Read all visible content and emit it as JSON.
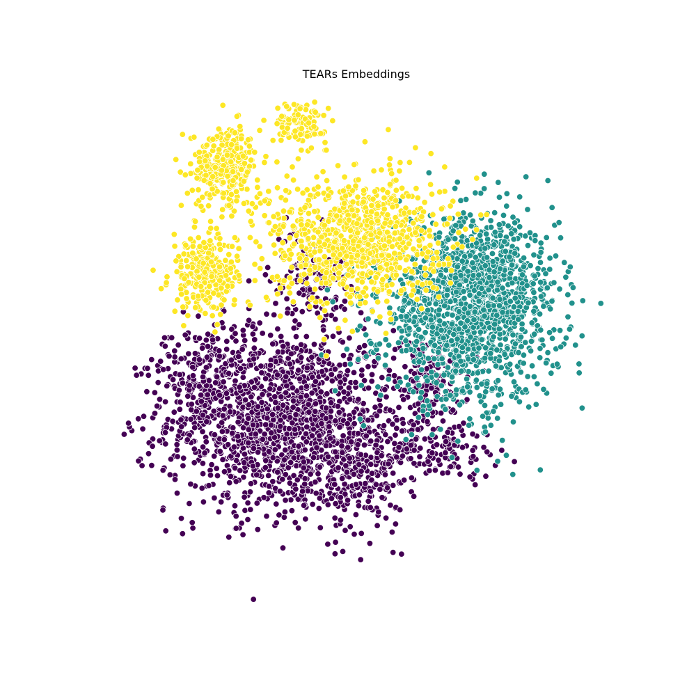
{
  "chart_data": {
    "type": "scatter",
    "title": "TEARs Embeddings",
    "xlabel": "",
    "ylabel": "",
    "axes_visible": false,
    "grid": false,
    "legend": "none",
    "xlim": [
      -80,
      80
    ],
    "ylim": [
      -80,
      80
    ],
    "series": [
      {
        "color": "#440154",
        "clusters": [
          {
            "cx": -22,
            "cy": -22,
            "sx": 17,
            "sy": 14,
            "n": 1500
          },
          {
            "cx": -44,
            "cy": -8,
            "sx": 8,
            "sy": 8,
            "n": 160
          },
          {
            "cx": -14,
            "cy": 22,
            "sx": 6,
            "sy": 7,
            "n": 120
          },
          {
            "cx": 3,
            "cy": -38,
            "sx": 6,
            "sy": 9,
            "n": 200
          },
          {
            "cx": 21,
            "cy": -11,
            "sx": 6,
            "sy": 7,
            "n": 150
          },
          {
            "cx": 26,
            "cy": -31,
            "sx": 8,
            "sy": 4,
            "n": 110
          }
        ]
      },
      {
        "color": "#21918c",
        "clusters": [
          {
            "cx": 33,
            "cy": 11,
            "sx": 13,
            "sy": 14,
            "n": 1400
          },
          {
            "cx": 42,
            "cy": 22,
            "sx": 7,
            "sy": 7,
            "n": 200
          }
        ]
      },
      {
        "color": "#fde725",
        "clusters": [
          {
            "cx": -45,
            "cy": 22,
            "sx": 5,
            "sy": 6,
            "n": 260
          },
          {
            "cx": -39,
            "cy": 55,
            "sx": 5,
            "sy": 6,
            "n": 300
          },
          {
            "cx": -17,
            "cy": 68,
            "sx": 4,
            "sy": 3,
            "n": 110
          },
          {
            "cx": 0,
            "cy": 33,
            "sx": 13,
            "sy": 10,
            "n": 900
          }
        ]
      }
    ]
  }
}
